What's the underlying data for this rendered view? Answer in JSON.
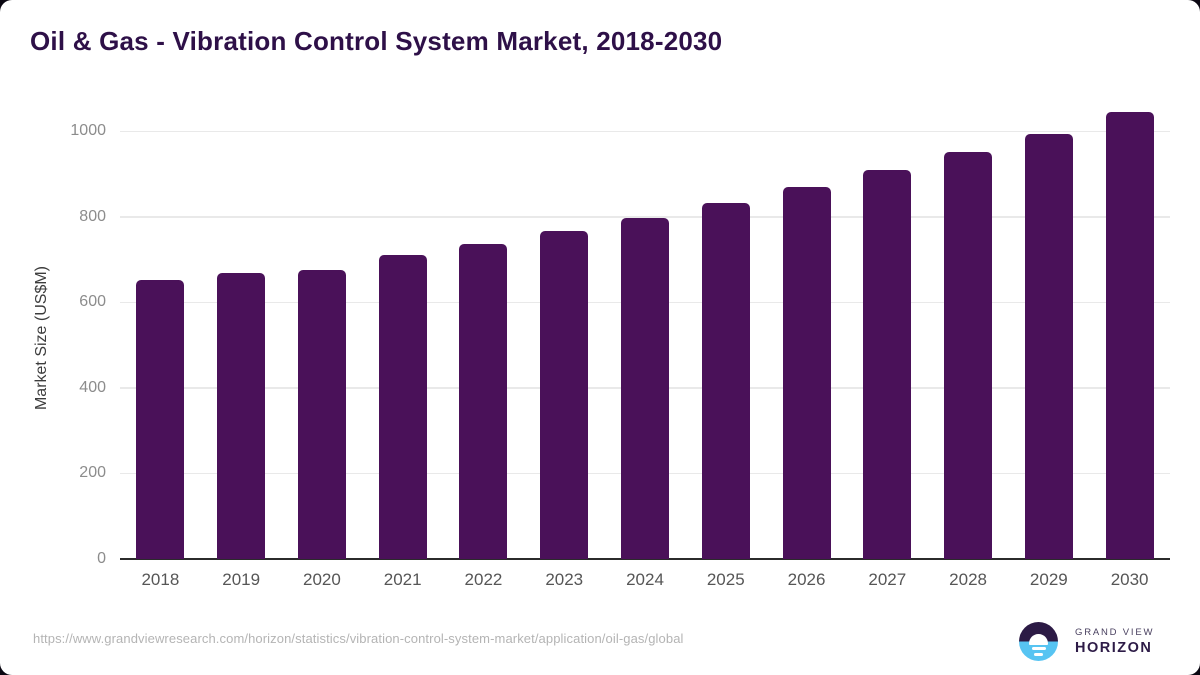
{
  "title": "Oil & Gas - Vibration Control System Market, 2018-2030",
  "chart_data": {
    "type": "bar",
    "title": "Oil & Gas - Vibration Control System Market, 2018-2030",
    "categories": [
      "2018",
      "2019",
      "2020",
      "2021",
      "2022",
      "2023",
      "2024",
      "2025",
      "2026",
      "2027",
      "2028",
      "2029",
      "2030"
    ],
    "values": [
      651,
      668,
      676,
      711,
      736,
      766,
      797,
      832,
      869,
      909,
      950,
      994,
      1045
    ],
    "xlabel": "",
    "ylabel": "Market Size (US$M)",
    "ylim": [
      0,
      1100
    ],
    "yticks": [
      0,
      200,
      400,
      600,
      800,
      1000
    ],
    "grid": true,
    "legend": false,
    "bar_color": "#4a1159"
  },
  "colors": {
    "title": "#2e1048",
    "bar": "#4a1159",
    "gridline": "#e9e9e9",
    "axis_line": "#2b2b2b",
    "y_tick_label": "#8c8c8c",
    "x_tick_label": "#565656",
    "url_text": "#b4b4b4",
    "logo_dark_purple": "#2c1a45",
    "logo_light_blue": "#57c4f2",
    "page_background": "#0b0812"
  },
  "footer": {
    "source_url": "https://www.grandviewresearch.com/horizon/statistics/vibration-control-system-market/application/oil-gas/global",
    "logo_line1": "GRAND VIEW",
    "logo_line2": "HORIZON"
  }
}
